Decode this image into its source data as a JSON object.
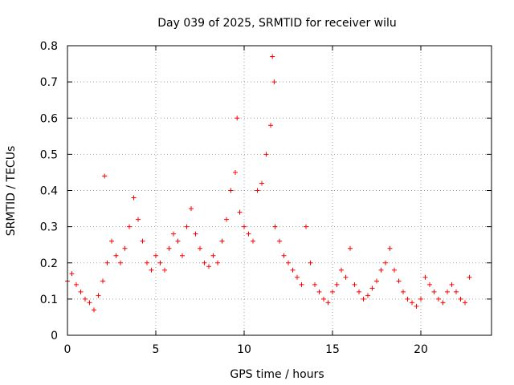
{
  "chart_data": {
    "type": "scatter",
    "title": "Day 039 of 2025, SRMTID for receiver wilu",
    "xlabel": "GPS time / hours",
    "ylabel": "SRMTID / TECUs",
    "xlim": [
      0,
      24
    ],
    "ylim": [
      0,
      0.8
    ],
    "xticks": [
      0,
      5,
      10,
      15,
      20
    ],
    "xtick_labels": [
      "0",
      "5",
      "10",
      "15",
      "20"
    ],
    "yticks": [
      0,
      0.1,
      0.2,
      0.3,
      0.4,
      0.5,
      0.6,
      0.7,
      0.8
    ],
    "ytick_labels": [
      "0",
      "0.1",
      "0.2",
      "0.3",
      "0.4",
      "0.5",
      "0.6",
      "0.7",
      "0.8"
    ],
    "grid": true,
    "marker": "+",
    "color": "#ff0000",
    "series": [
      {
        "name": "SRMTID",
        "x": [
          0.0,
          0.25,
          0.5,
          0.75,
          1.0,
          1.25,
          1.5,
          1.75,
          2.0,
          2.1,
          2.25,
          2.5,
          2.75,
          3.0,
          3.25,
          3.5,
          3.75,
          4.0,
          4.25,
          4.5,
          4.75,
          5.0,
          5.25,
          5.5,
          5.75,
          6.0,
          6.25,
          6.5,
          6.75,
          7.0,
          7.25,
          7.5,
          7.75,
          8.0,
          8.25,
          8.5,
          8.75,
          9.0,
          9.25,
          9.5,
          9.6,
          9.75,
          10.0,
          10.25,
          10.5,
          10.75,
          11.0,
          11.25,
          11.5,
          11.6,
          11.7,
          11.75,
          12.0,
          12.25,
          12.5,
          12.75,
          13.0,
          13.25,
          13.5,
          13.75,
          14.0,
          14.25,
          14.5,
          14.75,
          15.0,
          15.25,
          15.5,
          15.75,
          16.0,
          16.25,
          16.5,
          16.75,
          17.0,
          17.25,
          17.5,
          17.75,
          18.0,
          18.25,
          18.5,
          18.75,
          19.0,
          19.25,
          19.5,
          19.75,
          20.0,
          20.25,
          20.5,
          20.75,
          21.0,
          21.25,
          21.5,
          21.75,
          22.0,
          22.25,
          22.5,
          22.75
        ],
        "y": [
          0.15,
          0.17,
          0.14,
          0.12,
          0.1,
          0.09,
          0.07,
          0.11,
          0.15,
          0.44,
          0.2,
          0.26,
          0.22,
          0.2,
          0.24,
          0.3,
          0.38,
          0.32,
          0.26,
          0.2,
          0.18,
          0.22,
          0.2,
          0.18,
          0.24,
          0.28,
          0.26,
          0.22,
          0.3,
          0.35,
          0.28,
          0.24,
          0.2,
          0.19,
          0.22,
          0.2,
          0.26,
          0.32,
          0.4,
          0.45,
          0.6,
          0.34,
          0.3,
          0.28,
          0.26,
          0.4,
          0.42,
          0.5,
          0.58,
          0.77,
          0.7,
          0.3,
          0.26,
          0.22,
          0.2,
          0.18,
          0.16,
          0.14,
          0.3,
          0.2,
          0.14,
          0.12,
          0.1,
          0.09,
          0.12,
          0.14,
          0.18,
          0.16,
          0.24,
          0.14,
          0.12,
          0.1,
          0.11,
          0.13,
          0.15,
          0.18,
          0.2,
          0.24,
          0.18,
          0.15,
          0.12,
          0.1,
          0.09,
          0.08,
          0.1,
          0.16,
          0.14,
          0.12,
          0.1,
          0.09,
          0.12,
          0.14,
          0.12,
          0.1,
          0.09,
          0.16
        ]
      }
    ]
  }
}
